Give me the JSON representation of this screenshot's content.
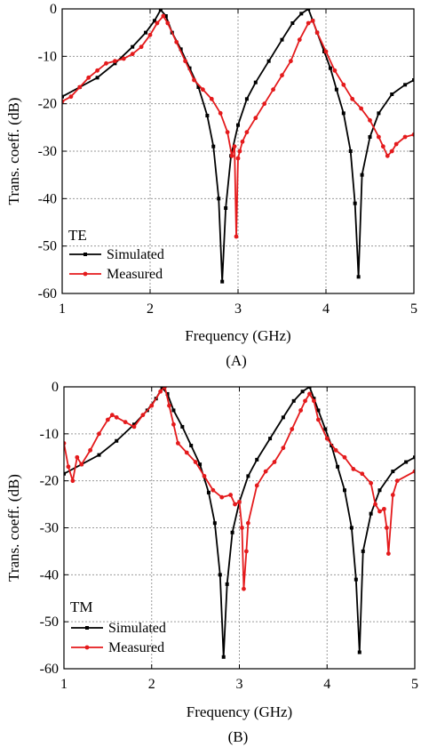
{
  "figure_labels": [
    "(A)",
    "(B)"
  ],
  "colors": {
    "simulated": "#000000",
    "measured": "#e41a1c",
    "grid": "#9a9a9a"
  },
  "chart_data": [
    {
      "type": "line",
      "panel_label": "(A)",
      "mode_label": "TE",
      "xlabel": "Frequency (GHz)",
      "ylabel": "Trans. coeff. (dB)",
      "xlim": [
        1,
        5
      ],
      "ylim": [
        -60,
        0
      ],
      "xticks": [
        1,
        2,
        3,
        4,
        5
      ],
      "yticks": [
        0,
        -10,
        -20,
        -30,
        -40,
        -50,
        -60
      ],
      "grid": true,
      "legend_position": "bottom-left",
      "series": [
        {
          "name": "Simulated",
          "color": "#000000",
          "marker": "square",
          "x": [
            1.0,
            1.2,
            1.4,
            1.6,
            1.8,
            1.95,
            2.05,
            2.12,
            2.18,
            2.25,
            2.35,
            2.45,
            2.55,
            2.65,
            2.72,
            2.78,
            2.82,
            2.86,
            2.92,
            3.0,
            3.1,
            3.2,
            3.35,
            3.5,
            3.62,
            3.72,
            3.8,
            3.85,
            3.9,
            3.98,
            4.05,
            4.12,
            4.2,
            4.28,
            4.33,
            4.37,
            4.41,
            4.5,
            4.6,
            4.75,
            4.9,
            5.0
          ],
          "y": [
            -18.5,
            -16.5,
            -14.5,
            -11.5,
            -8,
            -5,
            -2.5,
            -0.2,
            -1.5,
            -5,
            -8.5,
            -12.5,
            -16.5,
            -22.5,
            -29,
            -40,
            -57.5,
            -42,
            -31,
            -24.5,
            -19,
            -15.5,
            -11,
            -6.5,
            -3,
            -1,
            0,
            -2.5,
            -5,
            -9,
            -12.5,
            -17,
            -22,
            -30,
            -41,
            -56.5,
            -35,
            -27,
            -22,
            -18,
            -16,
            -15
          ]
        },
        {
          "name": "Measured",
          "color": "#e41a1c",
          "marker": "circle",
          "x": [
            1.0,
            1.1,
            1.2,
            1.3,
            1.4,
            1.5,
            1.6,
            1.7,
            1.8,
            1.9,
            2.0,
            2.08,
            2.15,
            2.2,
            2.3,
            2.4,
            2.5,
            2.6,
            2.7,
            2.8,
            2.88,
            2.93,
            2.96,
            2.98,
            3.0,
            3.02,
            3.05,
            3.1,
            3.2,
            3.3,
            3.4,
            3.5,
            3.6,
            3.7,
            3.8,
            3.85,
            3.9,
            4.0,
            4.1,
            4.2,
            4.3,
            4.4,
            4.5,
            4.6,
            4.65,
            4.7,
            4.75,
            4.8,
            4.9,
            5.0
          ],
          "y": [
            -19.5,
            -18.5,
            -16.5,
            -14.5,
            -13,
            -11.5,
            -11,
            -10.5,
            -9.5,
            -8,
            -5.5,
            -3,
            -1.5,
            -3,
            -7,
            -11,
            -15,
            -17,
            -19,
            -22,
            -26,
            -31,
            -29,
            -48,
            -31.5,
            -30,
            -28,
            -26,
            -23,
            -20,
            -17,
            -14,
            -11,
            -6.5,
            -3,
            -2.5,
            -5,
            -9,
            -13,
            -16,
            -19,
            -21,
            -23.5,
            -27,
            -29,
            -31,
            -30,
            -28.5,
            -27,
            -26.5
          ]
        }
      ]
    },
    {
      "type": "line",
      "panel_label": "(B)",
      "mode_label": "TM",
      "xlabel": "Frequency (GHz)",
      "ylabel": "Trans. coeff. (dB)",
      "xlim": [
        1,
        5
      ],
      "ylim": [
        -60,
        0
      ],
      "xticks": [
        1,
        2,
        3,
        4,
        5
      ],
      "yticks": [
        0,
        -10,
        -20,
        -30,
        -40,
        -50,
        -60
      ],
      "grid": true,
      "legend_position": "bottom-left",
      "series": [
        {
          "name": "Simulated",
          "color": "#000000",
          "marker": "square",
          "x": [
            1.0,
            1.2,
            1.4,
            1.6,
            1.8,
            1.95,
            2.05,
            2.12,
            2.18,
            2.25,
            2.35,
            2.45,
            2.55,
            2.65,
            2.72,
            2.78,
            2.82,
            2.86,
            2.92,
            3.0,
            3.1,
            3.2,
            3.35,
            3.5,
            3.62,
            3.72,
            3.8,
            3.85,
            3.9,
            3.98,
            4.05,
            4.12,
            4.2,
            4.28,
            4.33,
            4.37,
            4.41,
            4.5,
            4.6,
            4.75,
            4.9,
            5.0
          ],
          "y": [
            -18.5,
            -16.5,
            -14.5,
            -11.5,
            -8,
            -5,
            -2.5,
            -0.2,
            -1.5,
            -5,
            -8.5,
            -12.5,
            -16.5,
            -22.5,
            -29,
            -40,
            -57.5,
            -42,
            -31,
            -24.5,
            -19,
            -15.5,
            -11,
            -6.5,
            -3,
            -1,
            0,
            -2.5,
            -5,
            -9,
            -12.5,
            -17,
            -22,
            -30,
            -41,
            -56.5,
            -35,
            -27,
            -22,
            -18,
            -16,
            -15
          ]
        },
        {
          "name": "Measured",
          "color": "#e41a1c",
          "marker": "circle",
          "x": [
            1.0,
            1.05,
            1.1,
            1.15,
            1.2,
            1.3,
            1.4,
            1.5,
            1.55,
            1.6,
            1.7,
            1.8,
            1.9,
            2.0,
            2.1,
            2.15,
            2.2,
            2.25,
            2.3,
            2.4,
            2.5,
            2.6,
            2.7,
            2.8,
            2.9,
            2.95,
            3.0,
            3.03,
            3.05,
            3.08,
            3.1,
            3.2,
            3.3,
            3.4,
            3.5,
            3.6,
            3.7,
            3.75,
            3.8,
            3.85,
            3.9,
            4.0,
            4.1,
            4.2,
            4.3,
            4.4,
            4.5,
            4.55,
            4.6,
            4.65,
            4.68,
            4.7,
            4.75,
            4.8,
            5.0
          ],
          "y": [
            -12,
            -17,
            -20,
            -15,
            -16.5,
            -13.5,
            -10,
            -7,
            -6,
            -6.5,
            -7.5,
            -8.5,
            -6,
            -4,
            -1,
            0,
            -4,
            -8,
            -12,
            -14,
            -16,
            -19,
            -22,
            -23.5,
            -23,
            -25,
            -24.5,
            -30,
            -43,
            -35,
            -29,
            -21,
            -18,
            -16,
            -13,
            -9,
            -5,
            -3,
            -1.5,
            -3,
            -7,
            -11,
            -13.5,
            -15,
            -17.5,
            -18.5,
            -20.5,
            -25,
            -26.5,
            -26,
            -30,
            -35.5,
            -23,
            -20,
            -18
          ]
        }
      ]
    }
  ]
}
